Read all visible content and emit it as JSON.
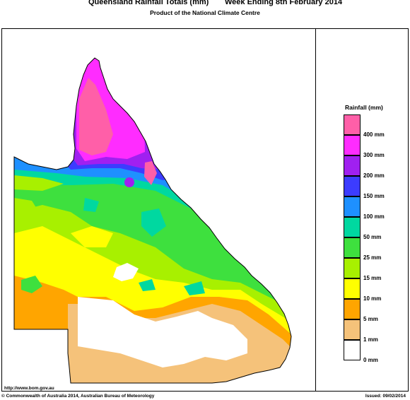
{
  "header": {
    "title": "Queensland Rainfall Totals (mm)",
    "period": "Week Ending 8th February 2014",
    "subtitle": "Product of the National Climate Centre"
  },
  "legend": {
    "title": "Rainfall (mm)",
    "bands": [
      {
        "label": "400 mm",
        "color": "#ff5fa8"
      },
      {
        "label": "300 mm",
        "color": "#ff2cff"
      },
      {
        "label": "200 mm",
        "color": "#a020f0"
      },
      {
        "label": "150 mm",
        "color": "#3c3cff"
      },
      {
        "label": "100 mm",
        "color": "#1e90ff"
      },
      {
        "label": "50 mm",
        "color": "#00d8a0"
      },
      {
        "label": "25 mm",
        "color": "#3ee03e"
      },
      {
        "label": "15 mm",
        "color": "#a8f000"
      },
      {
        "label": "10 mm",
        "color": "#ffff00"
      },
      {
        "label": "5 mm",
        "color": "#ffa500"
      },
      {
        "label": "1 mm",
        "color": "#f5c27a"
      },
      {
        "label": "0 mm",
        "color": "#ffffff"
      }
    ]
  },
  "footer": {
    "url": "http://www.bom.gov.au",
    "copyright": "© Commonwealth of Australia 2014, Australian Bureau of Meteorology",
    "issued": "Issued: 09/02/2014"
  }
}
